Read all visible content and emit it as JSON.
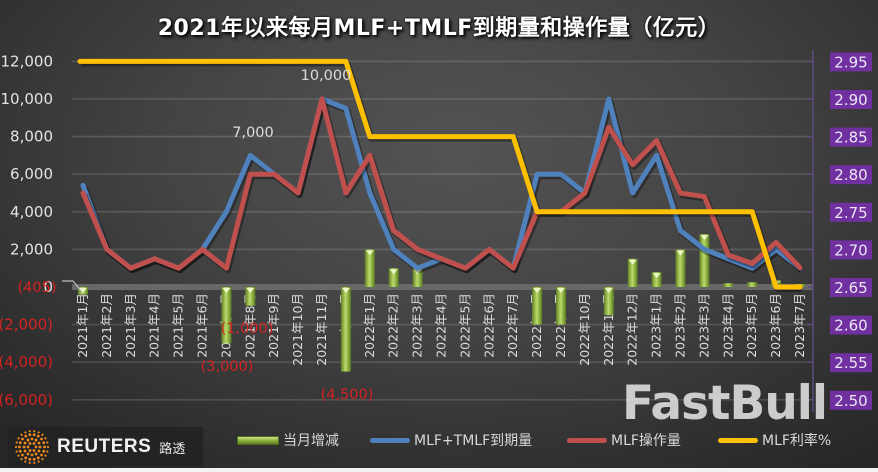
{
  "title": "2021年以来每月MLF+TMLF到期量和操作量（亿元）",
  "legend": [
    {
      "label": "当月增减",
      "kind": "bar",
      "color": "#8db33f"
    },
    {
      "label": "MLF+TMLF到期量",
      "kind": "line",
      "color": "#4f81bd"
    },
    {
      "label": "MLF操作量",
      "kind": "line",
      "color": "#c0504d"
    },
    {
      "label": "MLF利率%",
      "kind": "line",
      "color": "#ffc000"
    }
  ],
  "branding": {
    "reuters": "REUTERS",
    "reuters_cn": "路透",
    "watermark": "FastBull"
  },
  "chart_data": {
    "type": "bar+line",
    "title": "2021年以来每月MLF+TMLF到期量和操作量（亿元）",
    "xlabel": "",
    "ylabel": "亿元",
    "y2label": "MLF利率%",
    "grid": true,
    "legend_position": "bottom",
    "categories": [
      "2021年1月",
      "2021年2月",
      "2021年3月",
      "2021年4月",
      "2021年5月",
      "2021年6月",
      "2021年7月",
      "2021年8月",
      "2021年9月",
      "2021年10月",
      "2021年11月",
      "2021年12月",
      "2022年1月",
      "2022年2月",
      "2022年3月",
      "2022年4月",
      "2022年5月",
      "2022年6月",
      "2022年7月",
      "2022年8月",
      "2022年9月",
      "2022年10月",
      "2022年11月",
      "2022年12月",
      "2023年1月",
      "2023年2月",
      "2023年3月",
      "2023年4月",
      "2023年5月",
      "2023年6月",
      "2023年7月"
    ],
    "series": [
      {
        "name": "当月增减",
        "type": "bar",
        "axis": "left",
        "color": "#8db33f",
        "values": [
          -405,
          0,
          0,
          0,
          0,
          0,
          -3000,
          -1000,
          0,
          0,
          0,
          -4500,
          2000,
          1000,
          1000,
          0,
          0,
          0,
          0,
          -2000,
          -2000,
          0,
          -1500,
          1500,
          790,
          1990,
          2810,
          200,
          250,
          370,
          30
        ]
      },
      {
        "name": "MLF+TMLF到期量",
        "type": "line",
        "axis": "left",
        "color": "#4f81bd",
        "values": [
          5405,
          2000,
          1000,
          1500,
          1000,
          2000,
          4000,
          7000,
          6000,
          5000,
          10000,
          9500,
          5000,
          2000,
          1000,
          1500,
          1000,
          2000,
          1000,
          6000,
          6000,
          5000,
          10000,
          5000,
          7000,
          3000,
          2000,
          1500,
          1000,
          2000,
          1000
        ]
      },
      {
        "name": "MLF操作量",
        "type": "line",
        "axis": "left",
        "color": "#c0504d",
        "values": [
          5000,
          2000,
          1000,
          1500,
          1000,
          2000,
          1000,
          6000,
          6000,
          5000,
          10000,
          5000,
          7000,
          3000,
          2000,
          1500,
          1000,
          2000,
          1000,
          4000,
          4000,
          5000,
          8500,
          6500,
          7790,
          4990,
          4810,
          1700,
          1250,
          2370,
          1030
        ]
      },
      {
        "name": "MLF利率%",
        "type": "line",
        "axis": "right",
        "color": "#ffc000",
        "values": [
          2.95,
          2.95,
          2.95,
          2.95,
          2.95,
          2.95,
          2.95,
          2.95,
          2.95,
          2.95,
          2.95,
          2.95,
          2.85,
          2.85,
          2.85,
          2.85,
          2.85,
          2.85,
          2.85,
          2.75,
          2.75,
          2.75,
          2.75,
          2.75,
          2.75,
          2.75,
          2.75,
          2.75,
          2.75,
          2.65,
          2.65
        ]
      }
    ],
    "left_axis": {
      "ylim": [
        -6000,
        12000
      ],
      "ticks": [
        12000,
        10000,
        8000,
        6000,
        4000,
        2000,
        0,
        -2000,
        -4000,
        -6000
      ],
      "tick_labels": [
        "12,000",
        "10,000",
        "8,000",
        "6,000",
        "4,000",
        "2,000",
        "0",
        "(2,000)",
        "(4,000)",
        "(6,000)"
      ]
    },
    "right_axis": {
      "ylim": [
        2.5,
        2.95
      ],
      "ticks": [
        2.95,
        2.9,
        2.85,
        2.8,
        2.75,
        2.7,
        2.65,
        2.6,
        2.55,
        2.5
      ],
      "tick_labels": [
        "2.95",
        "2.90",
        "2.85",
        "2.80",
        "2.75",
        "2.70",
        "2.65",
        "2.60",
        "2.55",
        "2.50"
      ]
    },
    "data_labels": [
      {
        "series": "MLF+TMLF到期量",
        "index": 7,
        "text": "7,000"
      },
      {
        "series": "MLF+TMLF到期量",
        "index": 10,
        "text": "10,000"
      },
      {
        "series": "当月增减",
        "index": 0,
        "text": "(405)"
      },
      {
        "series": "当月增减",
        "index": 7,
        "text": "(1,000)"
      },
      {
        "series": "当月增减",
        "index": 6,
        "text": "(3,000)"
      },
      {
        "series": "当月增减",
        "index": 11,
        "text": "(4,500)"
      }
    ]
  }
}
